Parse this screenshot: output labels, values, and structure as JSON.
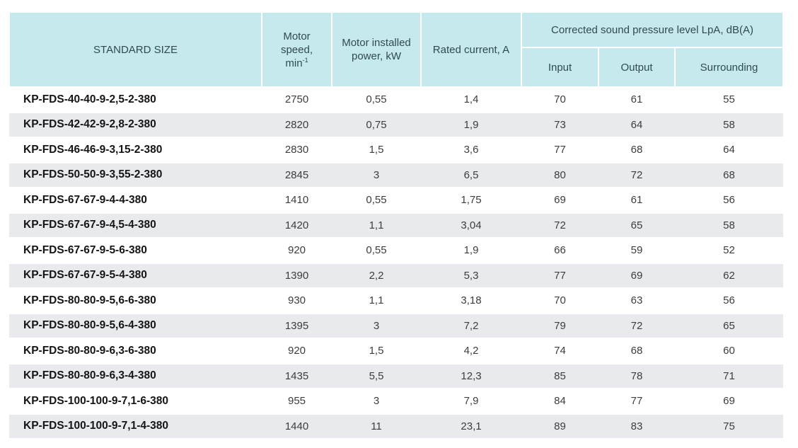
{
  "header": {
    "standard_size": "STANDARD SIZE",
    "motor_speed_line1": "Motor",
    "motor_speed_line2": "speed,",
    "motor_speed_unit": "min",
    "motor_speed_exp": "-1",
    "motor_power": "Motor installed power, kW",
    "rated_current": "Rated current, A",
    "sound_group": "Corrected sound pressure level LpA, dB(A)",
    "input": "Input",
    "output": "Output",
    "surrounding": "Surrounding"
  },
  "rows": [
    {
      "name": "KP-FDS-40-40-9-2,5-2-380",
      "speed": "2750",
      "power": "0,55",
      "current": "1,4",
      "input": "70",
      "output": "61",
      "surrounding": "55"
    },
    {
      "name": "KP-FDS-42-42-9-2,8-2-380",
      "speed": "2820",
      "power": "0,75",
      "current": "1,9",
      "input": "73",
      "output": "64",
      "surrounding": "58"
    },
    {
      "name": "KP-FDS-46-46-9-3,15-2-380",
      "speed": "2830",
      "power": "1,5",
      "current": "3,6",
      "input": "77",
      "output": "68",
      "surrounding": "64"
    },
    {
      "name": "KP-FDS-50-50-9-3,55-2-380",
      "speed": "2845",
      "power": "3",
      "current": "6,5",
      "input": "80",
      "output": "72",
      "surrounding": "68"
    },
    {
      "name": "KP-FDS-67-67-9-4-4-380",
      "speed": "1410",
      "power": "0,55",
      "current": "1,75",
      "input": "69",
      "output": "61",
      "surrounding": "56"
    },
    {
      "name": "KP-FDS-67-67-9-4,5-4-380",
      "speed": "1420",
      "power": "1,1",
      "current": "3,04",
      "input": "72",
      "output": "65",
      "surrounding": "58"
    },
    {
      "name": "KP-FDS-67-67-9-5-6-380",
      "speed": "920",
      "power": "0,55",
      "current": "1,9",
      "input": "66",
      "output": "59",
      "surrounding": "52"
    },
    {
      "name": "KP-FDS-67-67-9-5-4-380",
      "speed": "1390",
      "power": "2,2",
      "current": "5,3",
      "input": "77",
      "output": "69",
      "surrounding": "62"
    },
    {
      "name": "KP-FDS-80-80-9-5,6-6-380",
      "speed": "930",
      "power": "1,1",
      "current": "3,18",
      "input": "70",
      "output": "63",
      "surrounding": "56"
    },
    {
      "name": "KP-FDS-80-80-9-5,6-4-380",
      "speed": "1395",
      "power": "3",
      "current": "7,2",
      "input": "79",
      "output": "72",
      "surrounding": "65"
    },
    {
      "name": "KP-FDS-80-80-9-6,3-6-380",
      "speed": "920",
      "power": "1,5",
      "current": "4,2",
      "input": "74",
      "output": "68",
      "surrounding": "60"
    },
    {
      "name": "KP-FDS-80-80-9-6,3-4-380",
      "speed": "1435",
      "power": "5,5",
      "current": "12,3",
      "input": "85",
      "output": "78",
      "surrounding": "71"
    },
    {
      "name": "KP-FDS-100-100-9-7,1-6-380",
      "speed": "955",
      "power": "3",
      "current": "7,9",
      "input": "84",
      "output": "77",
      "surrounding": "69"
    },
    {
      "name": "KP-FDS-100-100-9-7,1-4-380",
      "speed": "1440",
      "power": "11",
      "current": "23,1",
      "input": "89",
      "output": "83",
      "surrounding": "75"
    }
  ],
  "colors": {
    "header_bg": "#c6e9ee",
    "stripe_bg": "#e8eaed"
  }
}
